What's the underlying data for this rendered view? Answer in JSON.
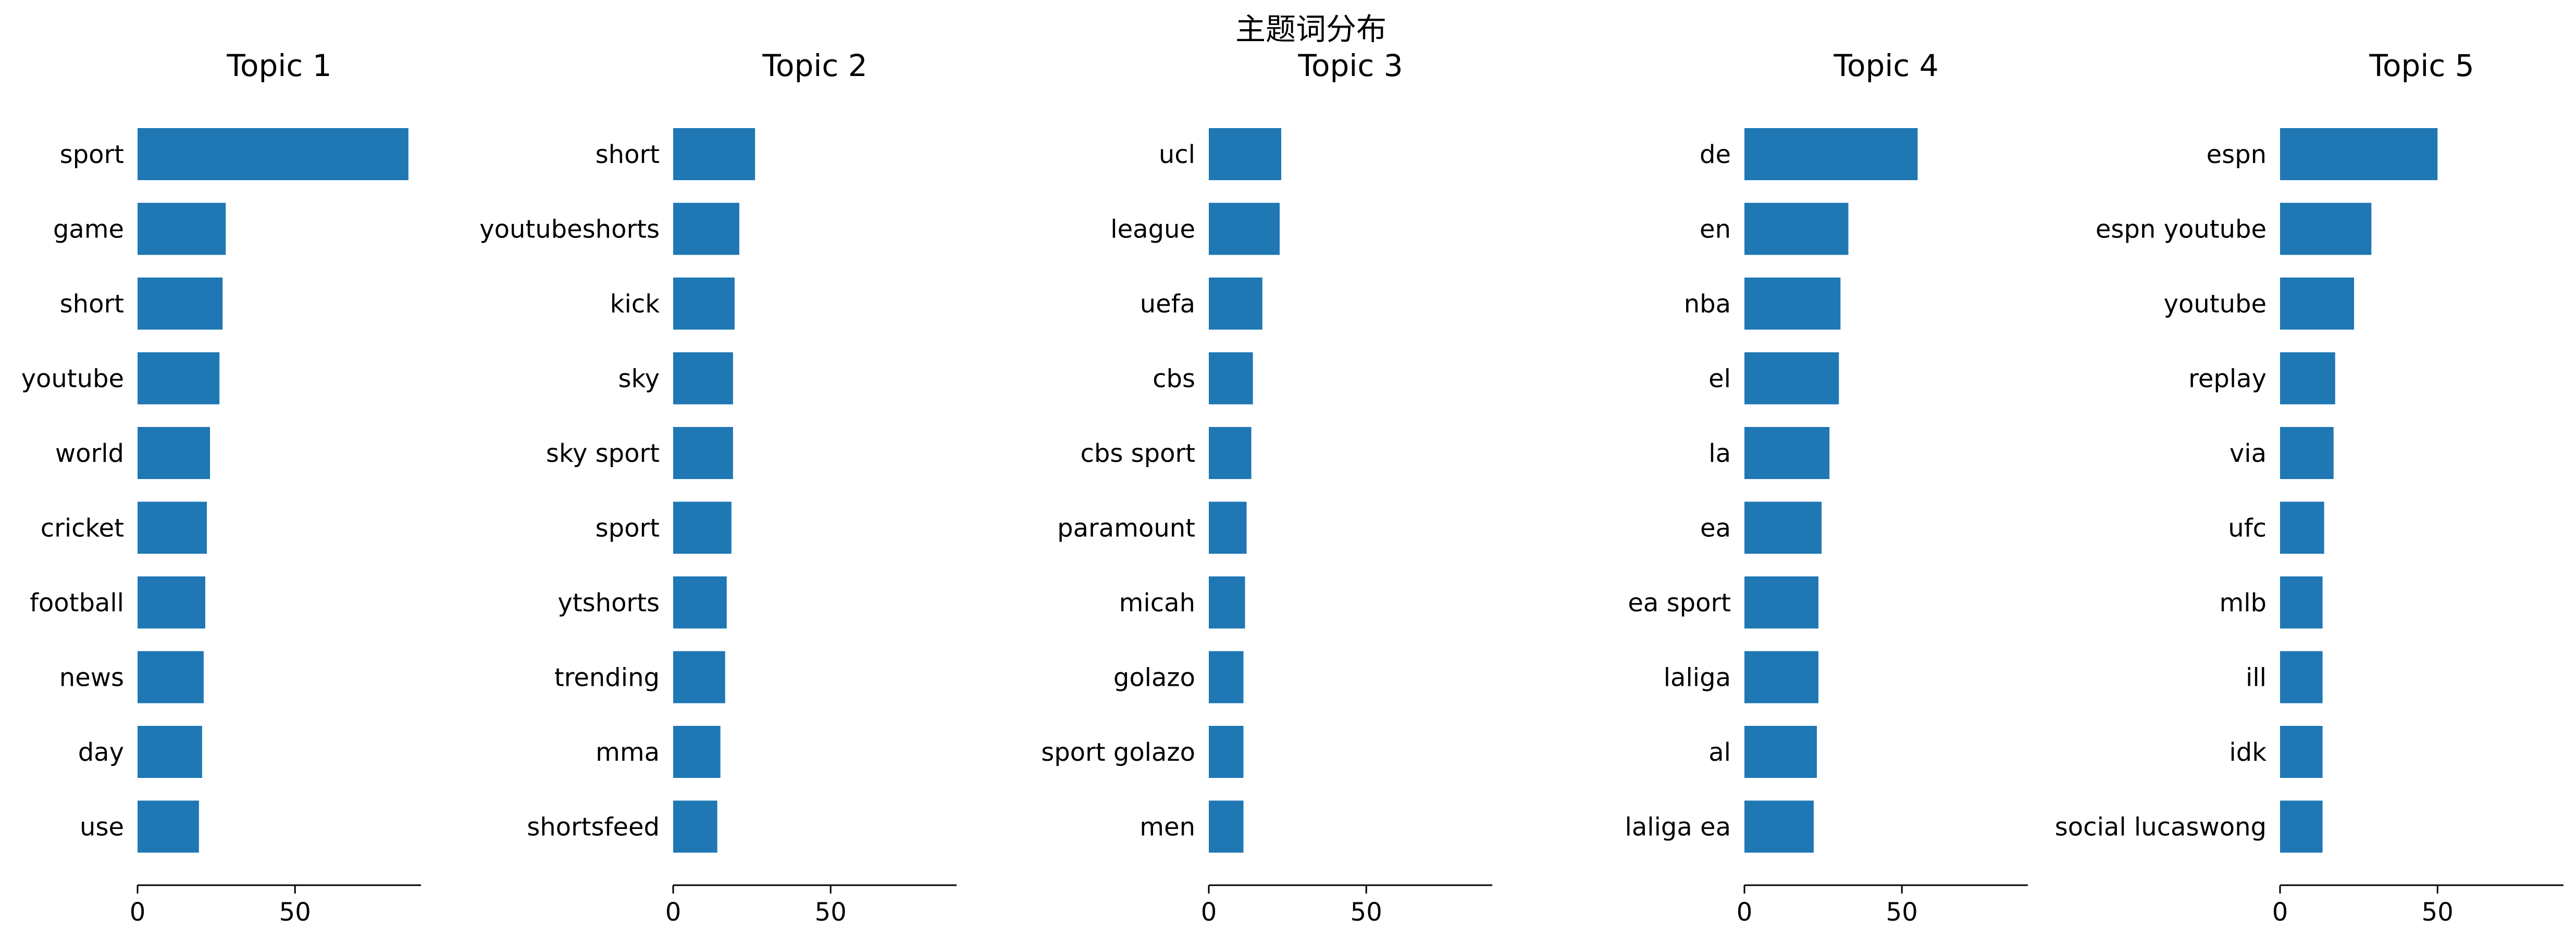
{
  "figure": {
    "suptitle": "主题词分布"
  },
  "colors": {
    "bar": "#1f77b4",
    "axis": "#000000",
    "text": "#000000",
    "background": "#ffffff"
  },
  "chart_data": [
    {
      "type": "bar",
      "orientation": "horizontal",
      "title": "Topic 1",
      "categories": [
        "sport",
        "game",
        "short",
        "youtube",
        "world",
        "cricket",
        "football",
        "news",
        "day",
        "use"
      ],
      "values": [
        86,
        28,
        27,
        26,
        23,
        22,
        21.5,
        21,
        20.5,
        19.5
      ],
      "xlim": [
        0,
        90
      ],
      "xticks": [
        0,
        50
      ]
    },
    {
      "type": "bar",
      "orientation": "horizontal",
      "title": "Topic 2",
      "categories": [
        "short",
        "youtubeshorts",
        "kick",
        "sky",
        "sky sport",
        "sport",
        "ytshorts",
        "trending",
        "mma",
        "shortsfeed"
      ],
      "values": [
        26,
        21,
        19.5,
        19,
        19,
        18.5,
        17,
        16.5,
        15,
        14
      ],
      "xlim": [
        0,
        90
      ],
      "xticks": [
        0,
        50
      ]
    },
    {
      "type": "bar",
      "orientation": "horizontal",
      "title": "Topic 3",
      "categories": [
        "ucl",
        "league",
        "uefa",
        "cbs",
        "cbs sport",
        "paramount",
        "micah",
        "golazo",
        "sport golazo",
        "men"
      ],
      "values": [
        23,
        22.5,
        17,
        14,
        13.5,
        12,
        11.5,
        11,
        11,
        11
      ],
      "xlim": [
        0,
        90
      ],
      "xticks": [
        0,
        50
      ]
    },
    {
      "type": "bar",
      "orientation": "horizontal",
      "title": "Topic 4",
      "categories": [
        "de",
        "en",
        "nba",
        "el",
        "la",
        "ea",
        "ea sport",
        "laliga",
        "al",
        "laliga ea"
      ],
      "values": [
        55,
        33,
        30.5,
        30,
        27,
        24.5,
        23.5,
        23.5,
        23,
        22
      ],
      "xlim": [
        0,
        90
      ],
      "xticks": [
        0,
        50
      ]
    },
    {
      "type": "bar",
      "orientation": "horizontal",
      "title": "Topic 5",
      "categories": [
        "espn",
        "espn youtube",
        "youtube",
        "replay",
        "via",
        "ufc",
        "mlb",
        "ill",
        "idk",
        "social lucaswong"
      ],
      "values": [
        50,
        29,
        23.5,
        17.5,
        17,
        14,
        13.5,
        13.5,
        13.5,
        13.5
      ],
      "xlim": [
        0,
        90
      ],
      "xticks": [
        0,
        50
      ]
    }
  ]
}
